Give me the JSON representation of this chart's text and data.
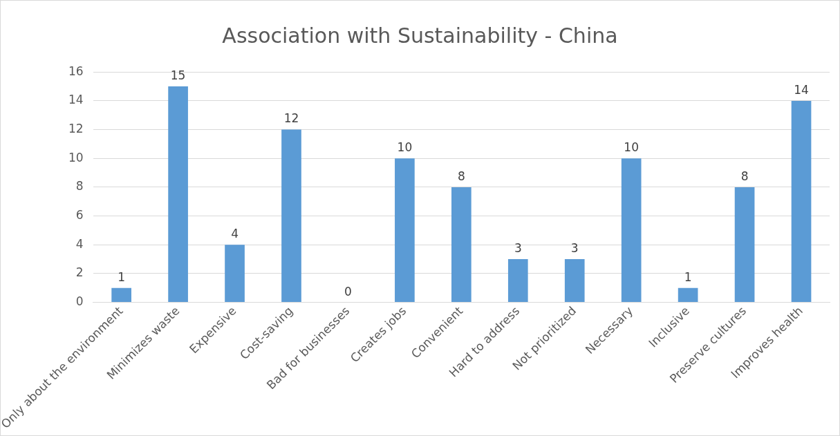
{
  "chart_data": {
    "type": "bar",
    "title": "Association with Sustainability - China",
    "categories": [
      "Only about the environment",
      "Minimizes waste",
      "Expensive",
      "Cost-saving",
      "Bad for businesses",
      "Creates jobs",
      "Convenient",
      "Hard to address",
      "Not prioritized",
      "Necessary",
      "Inclusive",
      "Preserve cultures",
      "Improves health"
    ],
    "values": [
      1,
      15,
      4,
      12,
      0,
      10,
      8,
      3,
      3,
      10,
      1,
      8,
      14
    ],
    "color": "#5b9bd5",
    "ylim": [
      0,
      16
    ],
    "yticks": [
      0,
      2,
      4,
      6,
      8,
      10,
      12,
      14,
      16
    ],
    "grid": "y",
    "data_labels": true
  }
}
